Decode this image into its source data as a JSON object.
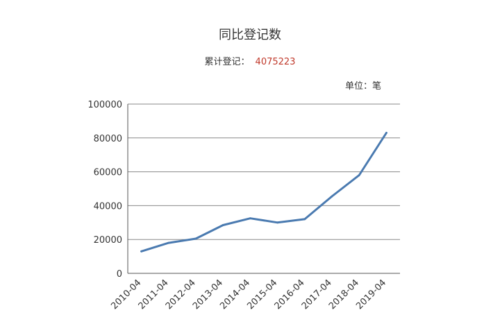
{
  "title": "同比登记数",
  "summary": {
    "label": "累计登记：",
    "value": "4075223"
  },
  "unit_label": "单位：笔",
  "colors": {
    "line": "#4a7ab0",
    "gridline": "#888888",
    "summary_value": "#c0392b"
  },
  "chart_data": {
    "type": "line",
    "categories": [
      "2010-04",
      "2011-04",
      "2012-04",
      "2013-04",
      "2014-04",
      "2015-04",
      "2016-04",
      "2017-04",
      "2018-04",
      "2019-04"
    ],
    "series": [
      {
        "values": [
          13000,
          18000,
          20500,
          28500,
          32500,
          30000,
          32000,
          45500,
          58000,
          83000
        ]
      }
    ],
    "yticks": [
      "0",
      "20000",
      "40000",
      "60000",
      "80000",
      "100000"
    ],
    "ylim": [
      0,
      100000
    ],
    "grid": true
  }
}
